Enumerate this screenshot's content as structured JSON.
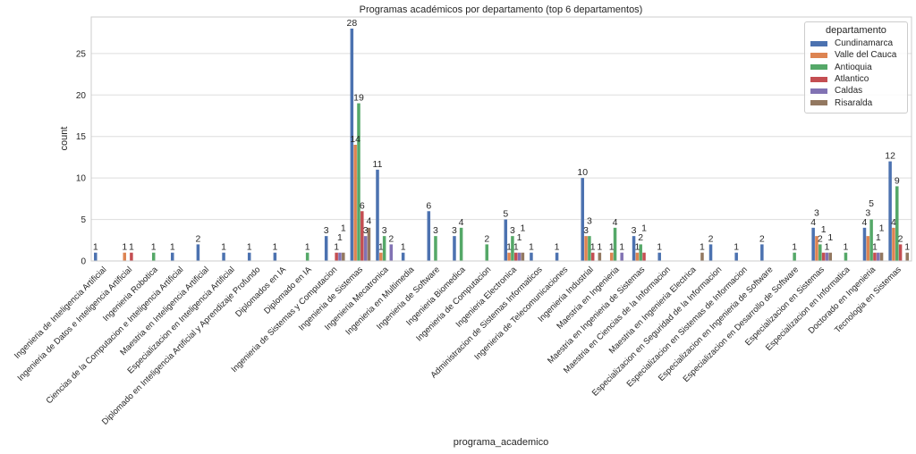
{
  "chart_data": {
    "type": "bar",
    "title": "Programas académicos por departamento (top 6 departamentos)",
    "xlabel": "programa_academico",
    "ylabel": "count",
    "ylim": [
      0,
      29.4
    ],
    "yticks": [
      0,
      5,
      10,
      15,
      20,
      25
    ],
    "grid": true,
    "legend": {
      "title": "departamento",
      "placement": "top-right"
    },
    "categories": [
      "Ingenieria de Inteligencia Artificial",
      "Ingenieria de Datos e Inteligencia Artificial",
      "Ingenieria Robotica",
      "Ciencias de la Computacion e Inteligencia Artificial",
      "Maestria en Inteligencia Artificial",
      "Especializacion en Inteligencia Artificial",
      "Diplomado en Inteligencia Artificial y Aprendizaje Profundo",
      "Diplomados en IA",
      "Diplomado en IA",
      "Ingenieria de Sistemas y Computacion",
      "Ingenieria de Sistemas",
      "Ingenieria Mecatronica",
      "Ingenieria en Multimedia",
      "Ingenieria de Software",
      "Ingenieria Biomedica",
      "Ingenieria de Computacion",
      "Ingenieria Electronica",
      "Administracion de Sistemas Informaticos",
      "Ingenieria de Telecomunicaciones",
      "Ingenieria Industrial",
      "Maestria en Ingenieria",
      "Maestria en Ingenieria de Sistemas",
      "Maestria en Ciencias de la Informacion",
      "Maestria en Ingenieria Electrica",
      "Especializacion en Seguridad de la Informacion",
      "Especializacion en Sistemas de Informacion",
      "Especializacion en Ingenieria de Software",
      "Especializacion en Desarrollo de Software",
      "Especializacion en Sistemas",
      "Especializacion en Informatica",
      "Doctorado en Ingenieria",
      "Tecnologia en Sistemas"
    ],
    "series": [
      {
        "name": "Cundinamarca",
        "color": "#4c72b0",
        "values": [
          1,
          0,
          0,
          1,
          2,
          1,
          1,
          1,
          0,
          3,
          28,
          11,
          1,
          6,
          3,
          0,
          5,
          1,
          1,
          10,
          0,
          3,
          1,
          0,
          2,
          1,
          2,
          0,
          4,
          0,
          4,
          12
        ]
      },
      {
        "name": "Valle del Cauca",
        "color": "#dd8452",
        "values": [
          0,
          1,
          0,
          0,
          0,
          0,
          0,
          0,
          0,
          0,
          14,
          1,
          0,
          0,
          0,
          0,
          1,
          0,
          0,
          3,
          1,
          1,
          0,
          0,
          0,
          0,
          0,
          0,
          3,
          0,
          3,
          4
        ]
      },
      {
        "name": "Antioquia",
        "color": "#55a868",
        "values": [
          0,
          0,
          1,
          0,
          0,
          0,
          0,
          0,
          1,
          0,
          19,
          3,
          0,
          3,
          4,
          2,
          3,
          0,
          0,
          3,
          4,
          2,
          0,
          0,
          0,
          0,
          0,
          1,
          2,
          1,
          5,
          9
        ]
      },
      {
        "name": "Atlantico",
        "color": "#c44e52",
        "values": [
          0,
          1,
          0,
          0,
          0,
          0,
          0,
          0,
          0,
          1,
          6,
          0,
          0,
          0,
          0,
          0,
          1,
          0,
          0,
          1,
          0,
          1,
          0,
          0,
          0,
          0,
          0,
          0,
          1,
          0,
          1,
          2
        ]
      },
      {
        "name": "Caldas",
        "color": "#8172b3",
        "values": [
          0,
          0,
          0,
          0,
          0,
          0,
          0,
          0,
          0,
          1,
          3,
          2,
          0,
          0,
          0,
          0,
          1,
          0,
          0,
          0,
          1,
          0,
          0,
          0,
          0,
          0,
          0,
          0,
          1,
          0,
          1,
          0
        ]
      },
      {
        "name": "Risaralda",
        "color": "#937860",
        "values": [
          0,
          0,
          0,
          0,
          0,
          0,
          0,
          0,
          0,
          1,
          4,
          0,
          0,
          0,
          0,
          0,
          1,
          0,
          0,
          1,
          0,
          0,
          0,
          1,
          0,
          0,
          0,
          0,
          1,
          0,
          1,
          1
        ]
      }
    ]
  }
}
